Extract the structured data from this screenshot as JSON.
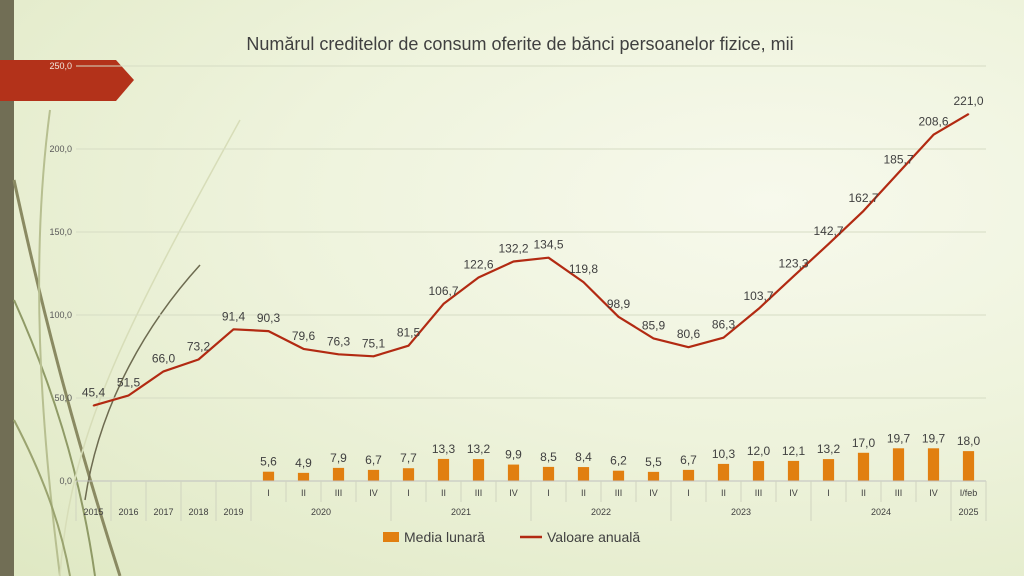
{
  "chart_data": {
    "type": "bar+line",
    "title": "Numărul creditelor de consum oferite de bănci persoanelor fizice, mii",
    "ylim": [
      0,
      250
    ],
    "y_ticks": [
      "0,0",
      "50,0",
      "100,0",
      "150,0",
      "200,0",
      "250,0"
    ],
    "grid": true,
    "legend_position": "bottom",
    "x_labels": [
      "2015",
      "2016",
      "2017",
      "2018",
      "2019",
      "I",
      "II",
      "III",
      "IV",
      "I",
      "II",
      "III",
      "IV",
      "I",
      "II",
      "III",
      "IV",
      "I",
      "II",
      "III",
      "IV",
      "I",
      "II",
      "III",
      "IV",
      "I/feb"
    ],
    "year_groups": [
      {
        "label": "2020",
        "start": 5,
        "end": 8
      },
      {
        "label": "2021",
        "start": 9,
        "end": 12
      },
      {
        "label": "2022",
        "start": 13,
        "end": 16
      },
      {
        "label": "2023",
        "start": 17,
        "end": 20
      },
      {
        "label": "2024",
        "start": 21,
        "end": 24
      },
      {
        "label": "2025",
        "start": 25,
        "end": 25
      }
    ],
    "series": [
      {
        "name": "Media lunară",
        "type": "bar",
        "color": "#e17f10",
        "values": [
          null,
          null,
          null,
          null,
          null,
          5.6,
          4.9,
          7.9,
          6.7,
          7.7,
          13.3,
          13.2,
          9.9,
          8.5,
          8.4,
          6.2,
          5.5,
          6.7,
          10.3,
          12.0,
          12.1,
          13.2,
          17.0,
          19.7,
          19.7,
          18.0
        ],
        "labels": [
          "",
          "",
          "",
          "",
          "",
          "5,6",
          "4,9",
          "7,9",
          "6,7",
          "7,7",
          "13,3",
          "13,2",
          "9,9",
          "8,5",
          "8,4",
          "6,2",
          "5,5",
          "6,7",
          "10,3",
          "12,0",
          "12,1",
          "13,2",
          "17,0",
          "19,7",
          "19,7",
          "18,0"
        ]
      },
      {
        "name": "Valoare anuală",
        "type": "line",
        "color": "#b22a12",
        "values": [
          45.4,
          51.5,
          66.0,
          73.2,
          91.4,
          90.3,
          79.6,
          76.3,
          75.1,
          81.5,
          106.7,
          122.6,
          132.2,
          134.5,
          119.8,
          98.9,
          85.9,
          80.6,
          86.3,
          103.7,
          123.3,
          142.7,
          162.7,
          185.7,
          208.6,
          221.0
        ],
        "labels": [
          "45,4",
          "51,5",
          "66,0",
          "73,2",
          "91,4",
          "90,3",
          "79,6",
          "76,3",
          "75,1",
          "81,5",
          "106,7",
          "122,6",
          "132,2",
          "134,5",
          "119,8",
          "98,9",
          "85,9",
          "80,6",
          "86,3",
          "103,7",
          "123,3",
          "142,7",
          "162,7",
          "185,7",
          "208,6",
          "221,0"
        ]
      }
    ]
  },
  "colors": {
    "background": "#eef3dc",
    "accent_tab": "#b3321a",
    "left_bar": "#716e55",
    "bar": "#e17f10",
    "line": "#b22a12"
  }
}
